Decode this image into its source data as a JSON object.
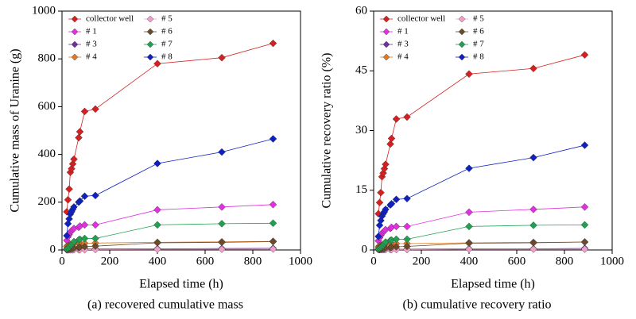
{
  "chart_data": [
    {
      "type": "line",
      "caption": "(a) recovered cumulative mass",
      "xlabel": "Elapsed time (h)",
      "ylabel": "Cumulative mass of Uranine (g)",
      "x": [
        20,
        25,
        30,
        35,
        40,
        45,
        50,
        70,
        75,
        95,
        140,
        400,
        670,
        885
      ],
      "xlim": [
        0,
        1000
      ],
      "xticks": [
        0,
        200,
        400,
        600,
        800,
        1000
      ],
      "ylim": [
        0,
        1000
      ],
      "yticks": [
        0,
        200,
        400,
        600,
        800,
        1000
      ],
      "grid": false,
      "legend": "upper left",
      "series": [
        {
          "name": "collector well",
          "color": "#d42020",
          "values": [
            160,
            210,
            255,
            325,
            340,
            360,
            380,
            470,
            495,
            580,
            590,
            780,
            805,
            865
          ]
        },
        {
          "name": "# 1",
          "color": "#e030e0",
          "values": [
            40,
            55,
            65,
            75,
            80,
            85,
            90,
            95,
            100,
            105,
            105,
            168,
            180,
            190
          ]
        },
        {
          "name": "# 3",
          "color": "#7030a0",
          "values": [
            1,
            1,
            2,
            2,
            2,
            3,
            3,
            3,
            3,
            4,
            4,
            5,
            6,
            7
          ]
        },
        {
          "name": "# 4",
          "color": "#e07820",
          "values": [
            15,
            18,
            20,
            22,
            24,
            25,
            26,
            27,
            28,
            28,
            29,
            32,
            34,
            36
          ]
        },
        {
          "name": "# 5",
          "color": "#f0a0c8",
          "values": [
            1,
            1,
            1,
            1,
            1,
            1,
            1,
            1,
            1,
            1,
            2,
            3,
            3,
            4
          ]
        },
        {
          "name": "# 6",
          "color": "#6b4a2a",
          "values": [
            2,
            3,
            4,
            5,
            6,
            7,
            8,
            10,
            12,
            14,
            16,
            30,
            32,
            35
          ]
        },
        {
          "name": "# 7",
          "color": "#20a050",
          "values": [
            5,
            8,
            12,
            18,
            22,
            28,
            35,
            42,
            45,
            48,
            48,
            105,
            110,
            112
          ]
        },
        {
          "name": "# 8",
          "color": "#1020c0",
          "values": [
            60,
            110,
            130,
            150,
            160,
            170,
            180,
            200,
            205,
            225,
            228,
            362,
            410,
            465
          ]
        }
      ]
    },
    {
      "type": "line",
      "caption": "(b) cumulative recovery ratio",
      "xlabel": "Elapsed time (h)",
      "ylabel": "Cumulative recovery ratio (%)",
      "x": [
        20,
        25,
        30,
        35,
        40,
        45,
        50,
        70,
        75,
        95,
        140,
        400,
        670,
        885
      ],
      "xlim": [
        0,
        1000
      ],
      "xticks": [
        0,
        200,
        400,
        600,
        800,
        1000
      ],
      "ylim": [
        0,
        60
      ],
      "yticks": [
        0,
        15,
        30,
        45,
        60
      ],
      "grid": false,
      "legend": "upper left",
      "series": [
        {
          "name": "collector well",
          "color": "#d42020",
          "values": [
            9.1,
            11.9,
            14.4,
            18.4,
            19.3,
            20.4,
            21.5,
            26.6,
            28,
            32.9,
            33.4,
            44.2,
            45.6,
            49
          ]
        },
        {
          "name": "# 1",
          "color": "#e030e0",
          "values": [
            2.3,
            3.1,
            3.7,
            4.2,
            4.5,
            4.8,
            5.1,
            5.4,
            5.7,
            5.9,
            5.9,
            9.5,
            10.2,
            10.8
          ]
        },
        {
          "name": "# 3",
          "color": "#7030a0",
          "values": [
            0.1,
            0.1,
            0.1,
            0.1,
            0.1,
            0.2,
            0.2,
            0.2,
            0.2,
            0.2,
            0.2,
            0.3,
            0.3,
            0.4
          ]
        },
        {
          "name": "# 4",
          "color": "#e07820",
          "values": [
            0.8,
            1,
            1.1,
            1.2,
            1.4,
            1.4,
            1.5,
            1.5,
            1.6,
            1.6,
            1.6,
            1.8,
            1.9,
            2
          ]
        },
        {
          "name": "# 5",
          "color": "#f0a0c8",
          "values": [
            0.1,
            0.1,
            0.1,
            0.1,
            0.1,
            0.1,
            0.1,
            0.1,
            0.1,
            0.1,
            0.1,
            0.2,
            0.2,
            0.2
          ]
        },
        {
          "name": "# 6",
          "color": "#6b4a2a",
          "values": [
            0.1,
            0.2,
            0.2,
            0.3,
            0.3,
            0.4,
            0.5,
            0.6,
            0.7,
            0.8,
            0.9,
            1.7,
            1.8,
            2
          ]
        },
        {
          "name": "# 7",
          "color": "#20a050",
          "values": [
            0.3,
            0.5,
            0.7,
            1,
            1.2,
            1.6,
            2,
            2.4,
            2.5,
            2.7,
            2.7,
            5.9,
            6.2,
            6.3
          ]
        },
        {
          "name": "# 8",
          "color": "#1020c0",
          "values": [
            3.4,
            6.2,
            7.4,
            8.5,
            9.1,
            9.6,
            10.2,
            11.3,
            11.6,
            12.7,
            12.9,
            20.5,
            23.2,
            26.3
          ]
        }
      ]
    }
  ]
}
